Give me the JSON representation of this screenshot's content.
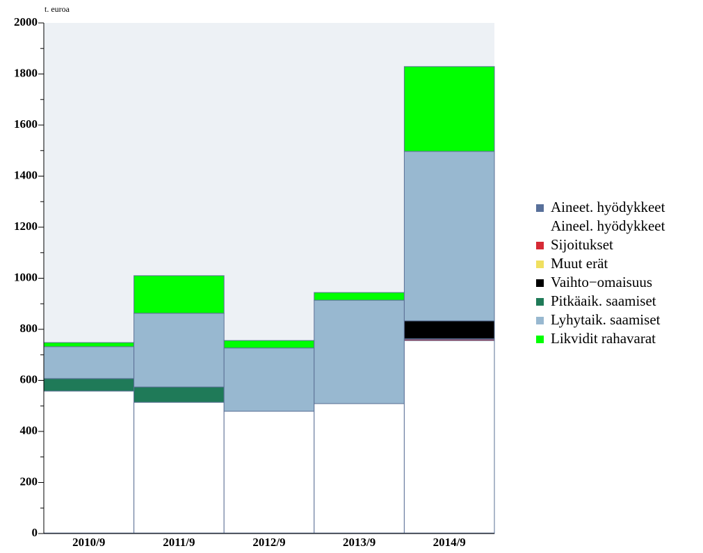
{
  "chart_data": {
    "type": "stacked_bar",
    "y_axis_label": "t. euroa",
    "categories": [
      "2010/9",
      "2011/9",
      "2012/9",
      "2013/9",
      "2014/9"
    ],
    "series": [
      {
        "name": "Aineet. hyödykkeet",
        "color": "#58709a",
        "values": [
          2,
          2,
          2,
          2,
          2
        ]
      },
      {
        "name": "Aineel. hyödykkeet",
        "color": "#ffffff",
        "values": [
          556,
          512,
          477,
          507,
          754
        ]
      },
      {
        "name": "Sijoitukset",
        "color": "#d62a35",
        "values": [
          0,
          0,
          0,
          0,
          5
        ]
      },
      {
        "name": "Muut erät",
        "color": "#f0e060",
        "values": [
          0,
          0,
          0,
          0,
          2
        ]
      },
      {
        "name": "Vaihto−omaisuus",
        "color": "#000000",
        "values": [
          0,
          0,
          0,
          0,
          70
        ]
      },
      {
        "name": "Pitkäaik. saamiset",
        "color": "#1f7a58",
        "values": [
          49,
          60,
          0,
          0,
          0
        ]
      },
      {
        "name": "Lyhytaik. saamiset",
        "color": "#98b8d0",
        "values": [
          125,
          289,
          248,
          405,
          664
        ]
      },
      {
        "name": "Likvidit rahavarat",
        "color": "#00ff00",
        "values": [
          16,
          147,
          29,
          30,
          332
        ]
      }
    ],
    "ylim": [
      0,
      2000
    ],
    "yticks": [
      0,
      200,
      400,
      600,
      800,
      1000,
      1200,
      1400,
      1600,
      1800,
      2000
    ],
    "yticks_minor": [
      100,
      300,
      500,
      700,
      900,
      1100,
      1300,
      1500,
      1700,
      1900
    ]
  }
}
